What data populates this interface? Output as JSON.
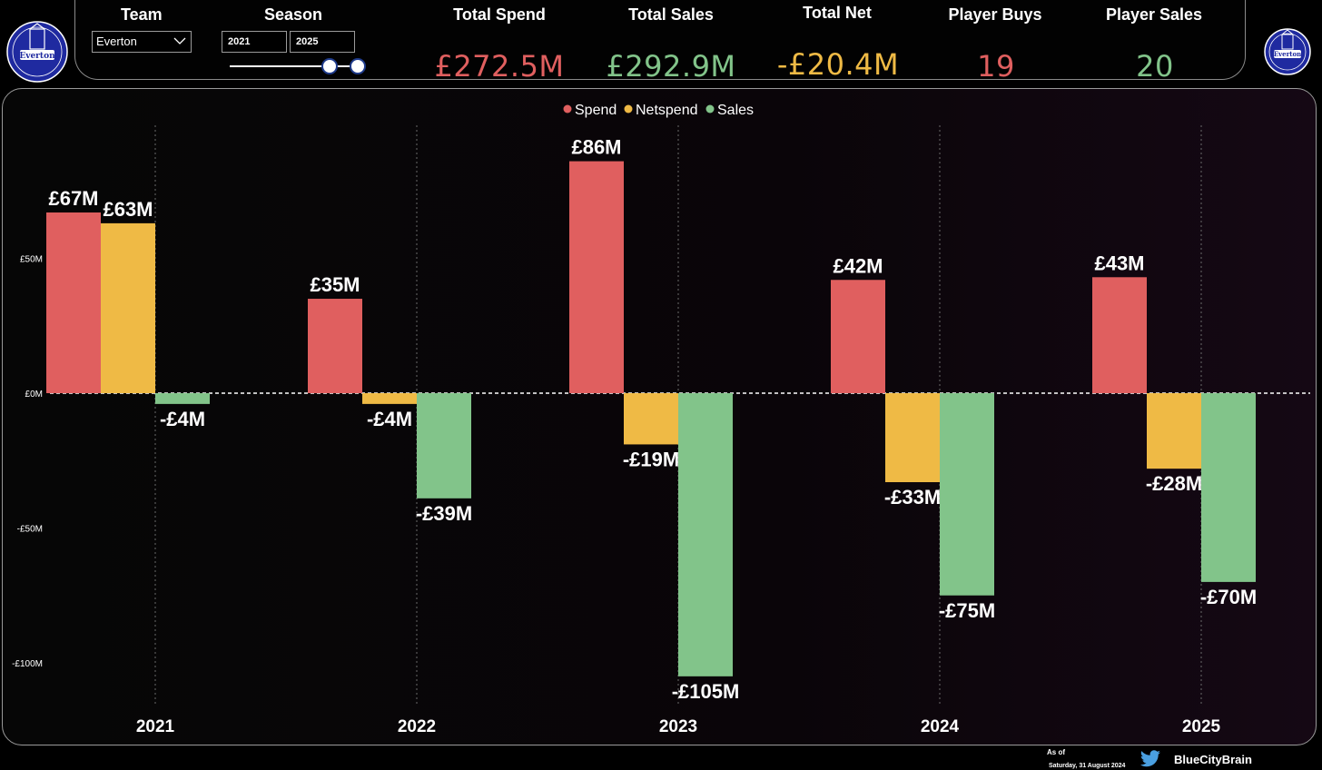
{
  "colors": {
    "spend": "#e05f5f",
    "netspend": "#efba45",
    "sales": "#82c48a",
    "text": "#ffffff",
    "crest": "#2a2aa8"
  },
  "header": {
    "team_label": "Team",
    "team_value": "Everton",
    "season_label": "Season",
    "season_from": "2021",
    "season_to": "2025",
    "kpis": [
      {
        "label": "Total Spend",
        "value": "£272.5M"
      },
      {
        "label": "Total Sales",
        "value": "£292.9M"
      },
      {
        "label": "Total Net",
        "value": "-£20.4M"
      },
      {
        "label": "Player Buys",
        "value": "19"
      },
      {
        "label": "Player Sales",
        "value": "20"
      }
    ]
  },
  "crest": {
    "text": "Everton"
  },
  "chart_data": {
    "type": "bar",
    "categories": [
      "2021",
      "2022",
      "2023",
      "2024",
      "2025"
    ],
    "series": [
      {
        "name": "Spend",
        "values": [
          67,
          35,
          86,
          42,
          43
        ],
        "labels": [
          "£67M",
          "£35M",
          "£86M",
          "£42M",
          "£43M"
        ]
      },
      {
        "name": "Netspend",
        "values": [
          63,
          -4,
          -19,
          -33,
          -28
        ],
        "labels": [
          "£63M",
          "-£4M",
          "-£19M",
          "-£33M",
          "-£28M"
        ]
      },
      {
        "name": "Sales",
        "values": [
          -4,
          -39,
          -105,
          -75,
          -70
        ],
        "labels": [
          "-£4M",
          "-£39M",
          "-£105M",
          "-£75M",
          "-£70M"
        ]
      }
    ],
    "yticks": [
      {
        "value": 50,
        "label": "£50M"
      },
      {
        "value": 0,
        "label": "£0M"
      },
      {
        "value": -50,
        "label": "-£50M"
      },
      {
        "value": -100,
        "label": "-£100M"
      }
    ],
    "ylim": [
      -112,
      95
    ],
    "legend_position": "top-center",
    "grid": "vertical-dotted"
  },
  "footer": {
    "as_of_label": "As of",
    "as_of_date": "Saturday, 31 August 2024",
    "handle": "BlueCityBrain"
  }
}
